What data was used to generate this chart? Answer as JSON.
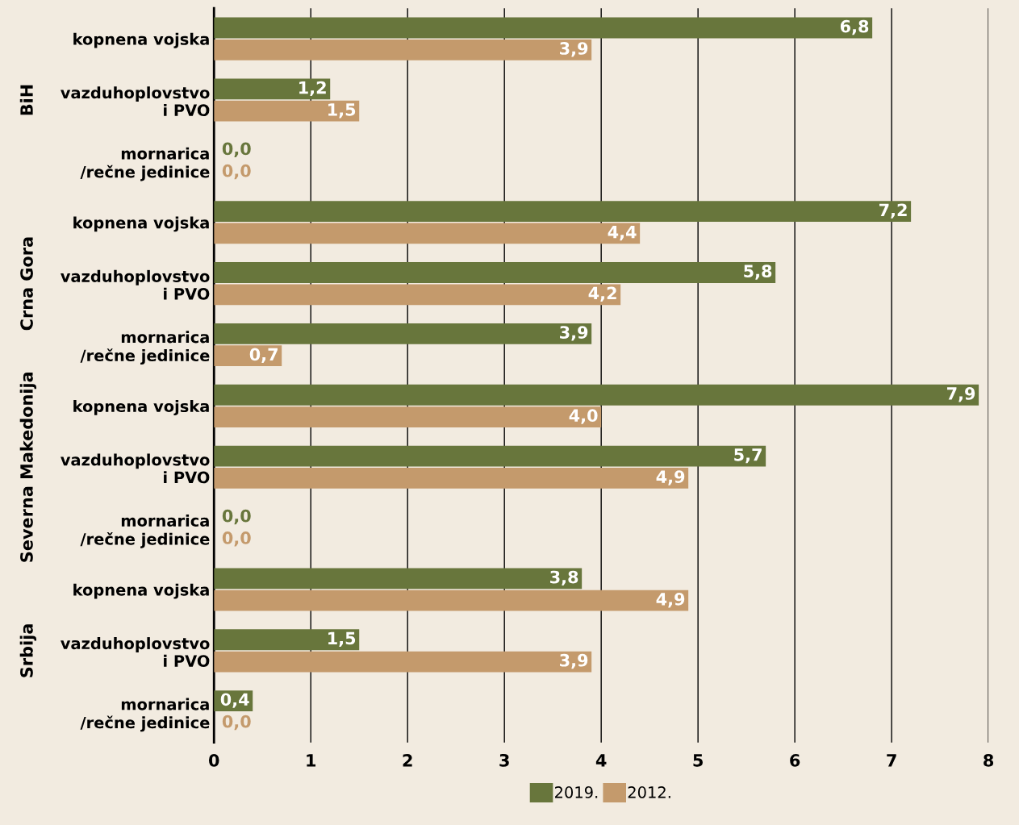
{
  "chart_data": {
    "type": "bar",
    "orientation": "horizontal",
    "categories": [
      "kopnena vojska",
      "vazduhoplovstvo\ni PVO",
      "mornarica\n/rečne jedinice",
      "kopnena vojska",
      "vazduhoplovstvo\ni PVO",
      "mornarica\n/rečne jedinice",
      "kopnena vojska",
      "vazduhoplovstvo\ni PVO",
      "mornarica\n/rečne jedinice",
      "kopnena vojska",
      "vazduhoplovstvo\ni PVO",
      "mornarica\n/rečne jedinice"
    ],
    "series": [
      {
        "name": "2019.",
        "color": "#68763c",
        "values": [
          6.8,
          1.2,
          0.0,
          7.2,
          5.8,
          3.9,
          7.9,
          5.7,
          0.0,
          3.8,
          1.5,
          0.4
        ],
        "value_labels": [
          "6,8",
          "1,2",
          "0,0",
          "7,2",
          "5,8",
          "3,9",
          "7,9",
          "5,7",
          "0,0",
          "3,8",
          "1,5",
          "0,4"
        ]
      },
      {
        "name": "2012.",
        "color": "#c49a6c",
        "values": [
          3.9,
          1.5,
          0.0,
          4.4,
          4.2,
          0.7,
          4.0,
          4.9,
          0.0,
          4.9,
          3.9,
          0.0
        ],
        "value_labels": [
          "3,9",
          "1,5",
          "0,0",
          "4,4",
          "4,2",
          "0,7",
          "4,0",
          "4,9",
          "0,0",
          "4,9",
          "3,9",
          "0,0"
        ]
      }
    ],
    "xlim": [
      0,
      8
    ],
    "xticks": [
      0,
      1,
      2,
      3,
      4,
      5,
      6,
      7,
      8
    ],
    "annotations": [
      "BiH",
      "Crna Gora",
      "Severna Makedonija",
      "Srbija"
    ],
    "grid": "x",
    "legend": "bottom"
  }
}
